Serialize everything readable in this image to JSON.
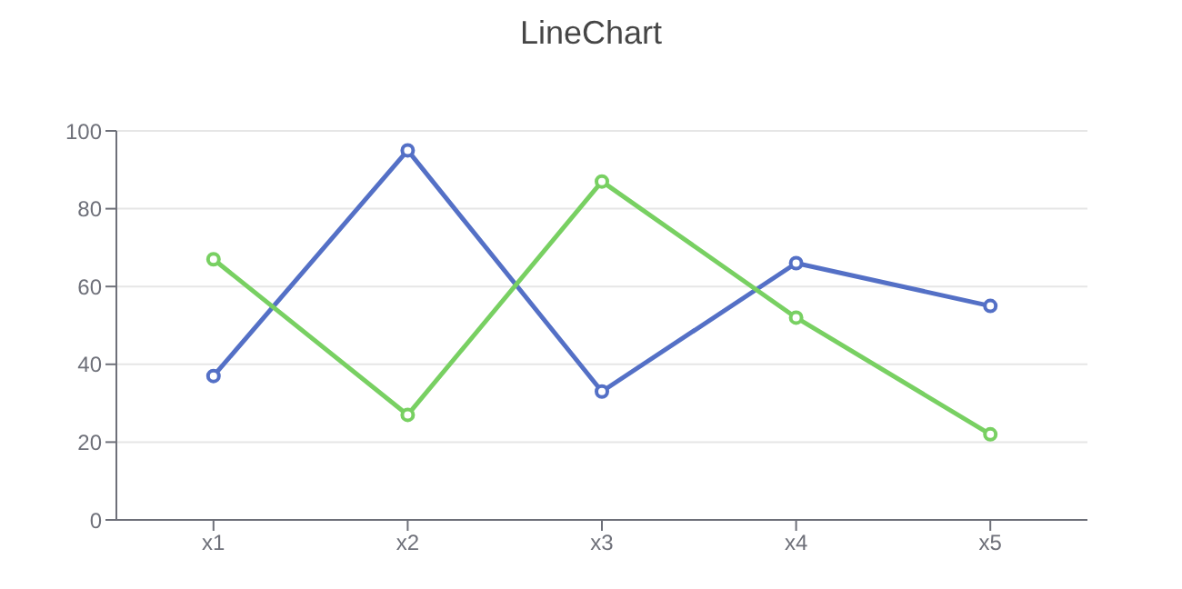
{
  "chart_data": {
    "type": "line",
    "title": "LineChart",
    "categories": [
      "x1",
      "x2",
      "x3",
      "x4",
      "x5"
    ],
    "series": [
      {
        "color": "#5470c6",
        "values": [
          37,
          95,
          33,
          66,
          55
        ]
      },
      {
        "color": "#78d062",
        "values": [
          67,
          27,
          87,
          52,
          22
        ]
      }
    ],
    "ylim": [
      0,
      100
    ],
    "yticks": [
      0,
      20,
      40,
      60,
      80,
      100
    ],
    "grid": "y",
    "marker": "circle",
    "line_style": "solid",
    "legend": false
  }
}
